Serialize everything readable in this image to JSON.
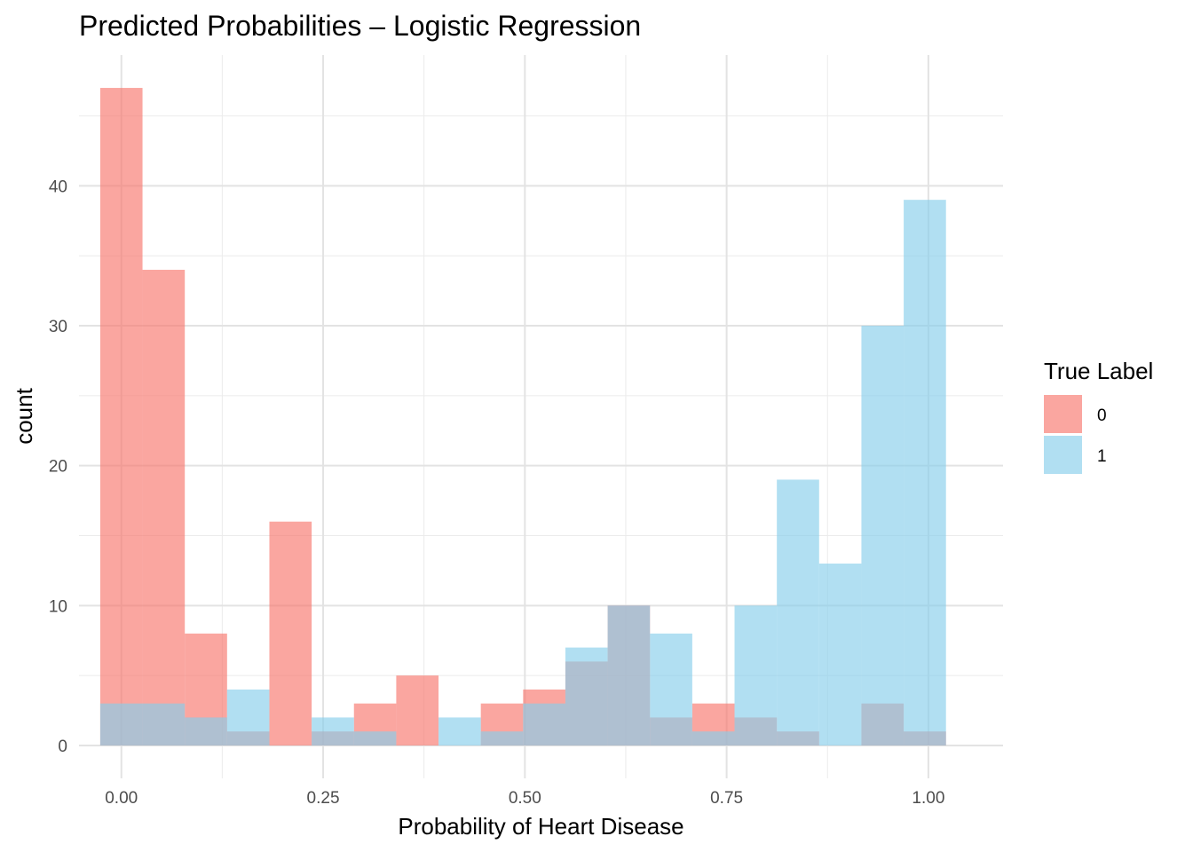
{
  "chart_data": {
    "type": "histogram",
    "title": "Predicted Probabilities – Logistic Regression",
    "xlabel": "Probability of Heart Disease",
    "ylabel": "count",
    "xlim": [
      -0.0525,
      1.0925
    ],
    "ylim": [
      -2.35,
      49.35
    ],
    "x_ticks": [
      0,
      0.25,
      0.5,
      0.75,
      1
    ],
    "x_tick_labels": [
      "0.00",
      "0.25",
      "0.50",
      "0.75",
      "1.00"
    ],
    "y_ticks": [
      0,
      10,
      20,
      30,
      40
    ],
    "y_tick_labels": [
      "0",
      "10",
      "20",
      "30",
      "40"
    ],
    "grid": true,
    "bin_edges": [
      -0.0262,
      0.0262,
      0.0786,
      0.131,
      0.1834,
      0.2358,
      0.2882,
      0.3406,
      0.393,
      0.4454,
      0.4978,
      0.5502,
      0.6026,
      0.655,
      0.7074,
      0.7598,
      0.8122,
      0.8646,
      0.917,
      0.9694,
      1.0218
    ],
    "series": [
      {
        "name": "0",
        "color": "#F8766D",
        "counts": [
          47,
          34,
          8,
          1,
          16,
          1,
          3,
          5,
          0,
          3,
          4,
          6,
          10,
          2,
          3,
          2,
          1,
          0,
          3,
          1
        ]
      },
      {
        "name": "1",
        "color": "#87CEEB",
        "counts": [
          3,
          3,
          2,
          4,
          0,
          2,
          1,
          0,
          2,
          1,
          3,
          7,
          10,
          8,
          1,
          10,
          19,
          13,
          30,
          39
        ]
      }
    ],
    "legend": {
      "title": "True Label",
      "position": "right"
    }
  }
}
